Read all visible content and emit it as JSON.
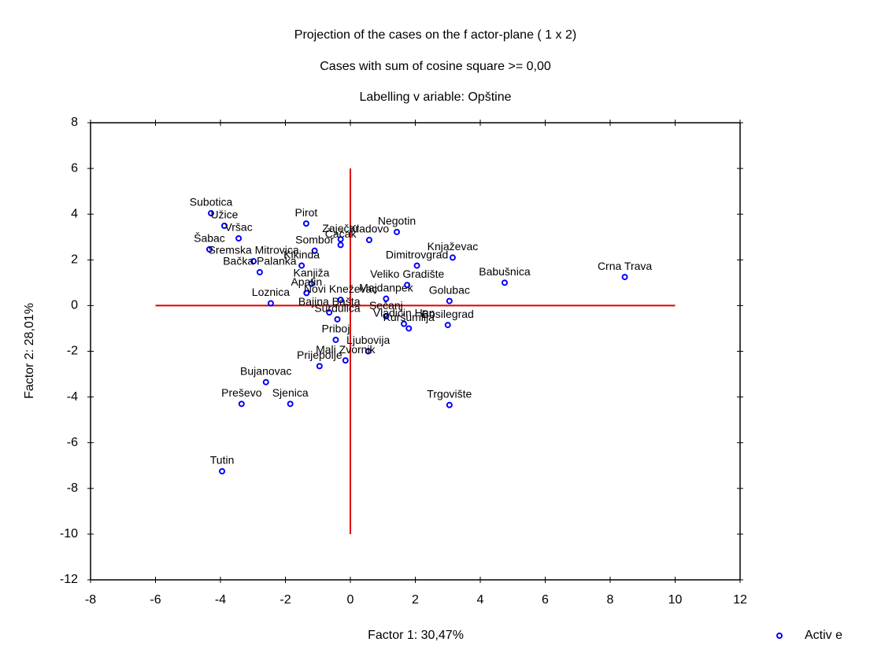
{
  "chart_data": {
    "type": "scatter",
    "title": "Projection of the cases on the f actor-plane (  1 x    2)",
    "subtitle": "Cases with sum of cosine square >=  0,00",
    "note": "Labelling v ariable: Opštine",
    "xlabel": "Factor 1: 30,47%",
    "ylabel": "Factor 2: 28,01%",
    "xlim": [
      -8,
      12
    ],
    "ylim": [
      -12,
      8
    ],
    "xticks": [
      -8,
      -6,
      -4,
      -2,
      0,
      2,
      4,
      6,
      8,
      10,
      12
    ],
    "yticks": [
      -12,
      -10,
      -8,
      -6,
      -4,
      -2,
      0,
      2,
      4,
      6,
      8
    ],
    "legend": "bottom-right",
    "cross": {
      "x": 0,
      "y": 0,
      "xspan": [
        -6,
        10
      ],
      "yspan": [
        -10,
        6
      ],
      "color": "#e00000"
    },
    "series": [
      {
        "name": "Activ e",
        "color": "#0000ff",
        "labels": [
          "Subotica",
          "Užice",
          "Vršac",
          "Šabac",
          "Sremska Mitrovica",
          "Bačka Palanka",
          "Pirot",
          "Zaječar",
          "Čačak",
          "Kladovo",
          "Negotin",
          "Sombor",
          "Kikinda",
          "Kanjiža",
          "Apatin",
          "Loznica",
          "Novi Kneževac",
          "Majdanpek",
          "Dimitrovgrad",
          "Knjaževac",
          "Veliko Gradište",
          "Golubac",
          "Babušnica",
          "Crna Trava",
          "Bajina Bašta",
          "Sečanj",
          "Surdulica",
          "Bosilegrad",
          "Kuršumlija",
          "Vladičin Han",
          "Priboj",
          "Ljubovija",
          "Mali Zvornik",
          "Prijepolje",
          "Bujanovac",
          "Preševo",
          "Sjenica",
          "Trgovište",
          "Tutin"
        ],
        "x": [
          -4.29,
          -3.88,
          -3.44,
          -4.34,
          -2.98,
          -2.79,
          -1.36,
          -0.3,
          -0.3,
          0.58,
          1.43,
          -1.1,
          -1.5,
          -1.2,
          -1.35,
          -2.45,
          -0.3,
          1.1,
          2.05,
          3.15,
          1.75,
          3.05,
          4.75,
          8.45,
          -0.65,
          1.1,
          -0.4,
          3.0,
          1.8,
          1.65,
          -0.45,
          0.55,
          -0.15,
          -0.95,
          -2.6,
          -3.35,
          -1.85,
          3.05,
          -3.95
        ],
        "values": [
          4.04,
          3.49,
          2.94,
          2.46,
          1.94,
          1.46,
          3.59,
          2.9,
          2.65,
          2.87,
          3.22,
          2.4,
          1.75,
          0.95,
          0.55,
          0.1,
          0.25,
          0.3,
          1.75,
          2.1,
          0.9,
          0.2,
          1.0,
          1.25,
          -0.3,
          -0.47,
          -0.6,
          -0.85,
          -1.0,
          -0.8,
          -1.5,
          -2.0,
          -2.4,
          -2.65,
          -3.35,
          -4.3,
          -4.3,
          -4.35,
          -7.25
        ]
      }
    ]
  }
}
